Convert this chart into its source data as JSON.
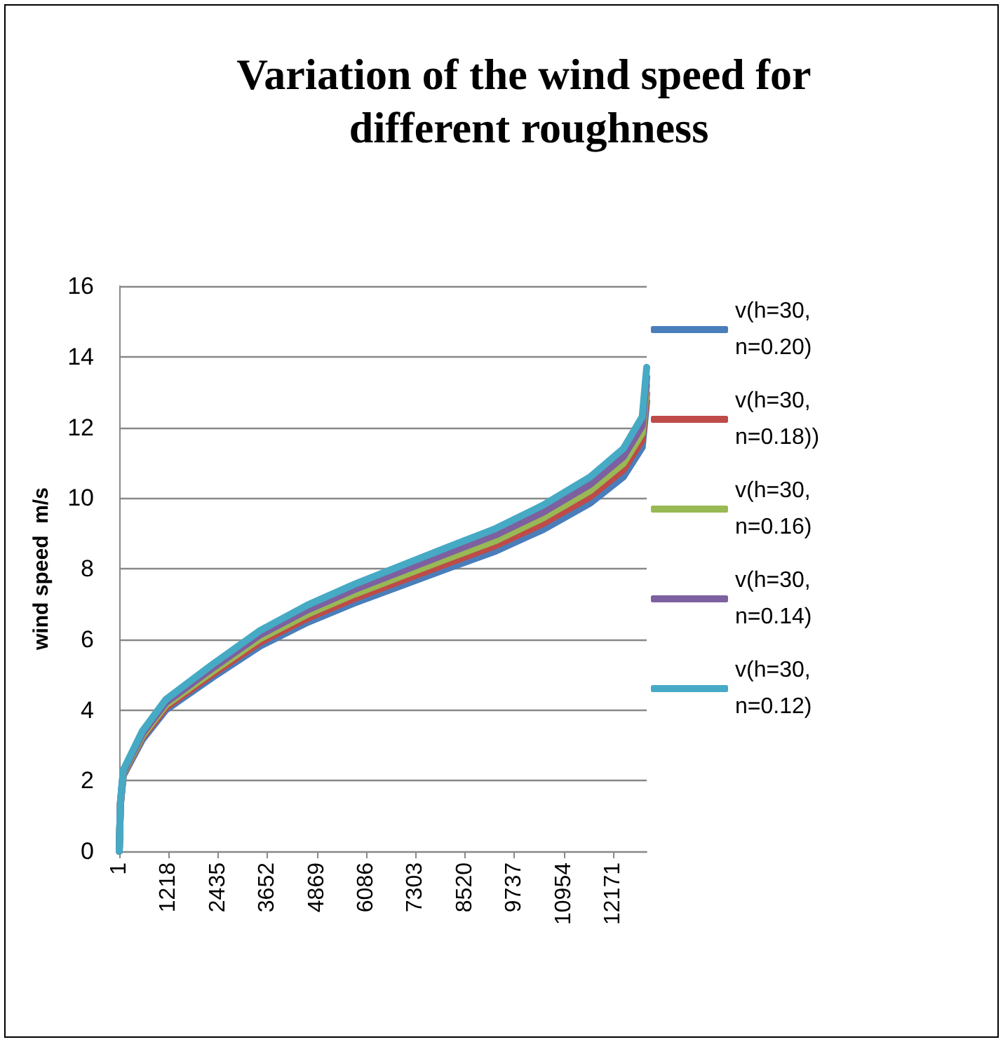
{
  "chart_data": {
    "type": "line",
    "title": "Variation of the wind speed for different roughness",
    "ylabel": "wind speed  m/s",
    "x": [
      1,
      30,
      100,
      570,
      1150,
      2310,
      3475,
      4640,
      5800,
      6960,
      8125,
      9285,
      10450,
      11610,
      12425,
      12890,
      13000
    ],
    "xlim": [
      1,
      13000
    ],
    "xticks": [
      1,
      1218,
      2435,
      3652,
      4869,
      6086,
      7303,
      8520,
      9737,
      10954,
      12171
    ],
    "ylim": [
      0,
      16
    ],
    "yticks": [
      0,
      2,
      4,
      6,
      8,
      10,
      12,
      14,
      16
    ],
    "grid": "y",
    "legend": "right",
    "marker": "none",
    "line_style": "solid",
    "series": [
      {
        "name": "v(h=30, n=0.20)",
        "color": "#4a7ebb",
        "values": [
          0,
          1.3,
          2.14,
          3.16,
          4.0,
          4.93,
          5.81,
          6.48,
          7.03,
          7.52,
          8.02,
          8.5,
          9.11,
          9.86,
          10.6,
          11.44,
          12.74
        ]
      },
      {
        "name": "v(h=30, n=0.18))",
        "color": "#be4b48",
        "values": [
          0,
          1.33,
          2.18,
          3.22,
          4.07,
          5.02,
          5.92,
          6.6,
          7.16,
          7.66,
          8.16,
          8.66,
          9.28,
          10.04,
          10.8,
          11.65,
          12.97
        ]
      },
      {
        "name": "v(h=30,n=0.16)",
        "color": "#98b954",
        "values": [
          0,
          1.35,
          2.21,
          3.27,
          4.14,
          5.1,
          6.02,
          6.71,
          7.28,
          7.79,
          8.3,
          8.8,
          9.44,
          10.21,
          10.98,
          11.84,
          13.19
        ]
      },
      {
        "name": "v(h=30,n=0.14)",
        "color": "#7d60a0",
        "values": [
          0,
          1.37,
          2.25,
          3.33,
          4.21,
          5.19,
          6.13,
          6.83,
          7.41,
          7.93,
          8.45,
          8.96,
          9.6,
          10.39,
          11.17,
          12.05,
          13.43
        ]
      },
      {
        "name": "v(h=30,n=0.12)",
        "color": "#46aac5",
        "values": [
          0,
          1.4,
          2.3,
          3.4,
          4.3,
          5.3,
          6.25,
          6.97,
          7.56,
          8.09,
          8.62,
          9.14,
          9.8,
          10.6,
          11.4,
          12.3,
          13.7
        ]
      }
    ]
  }
}
